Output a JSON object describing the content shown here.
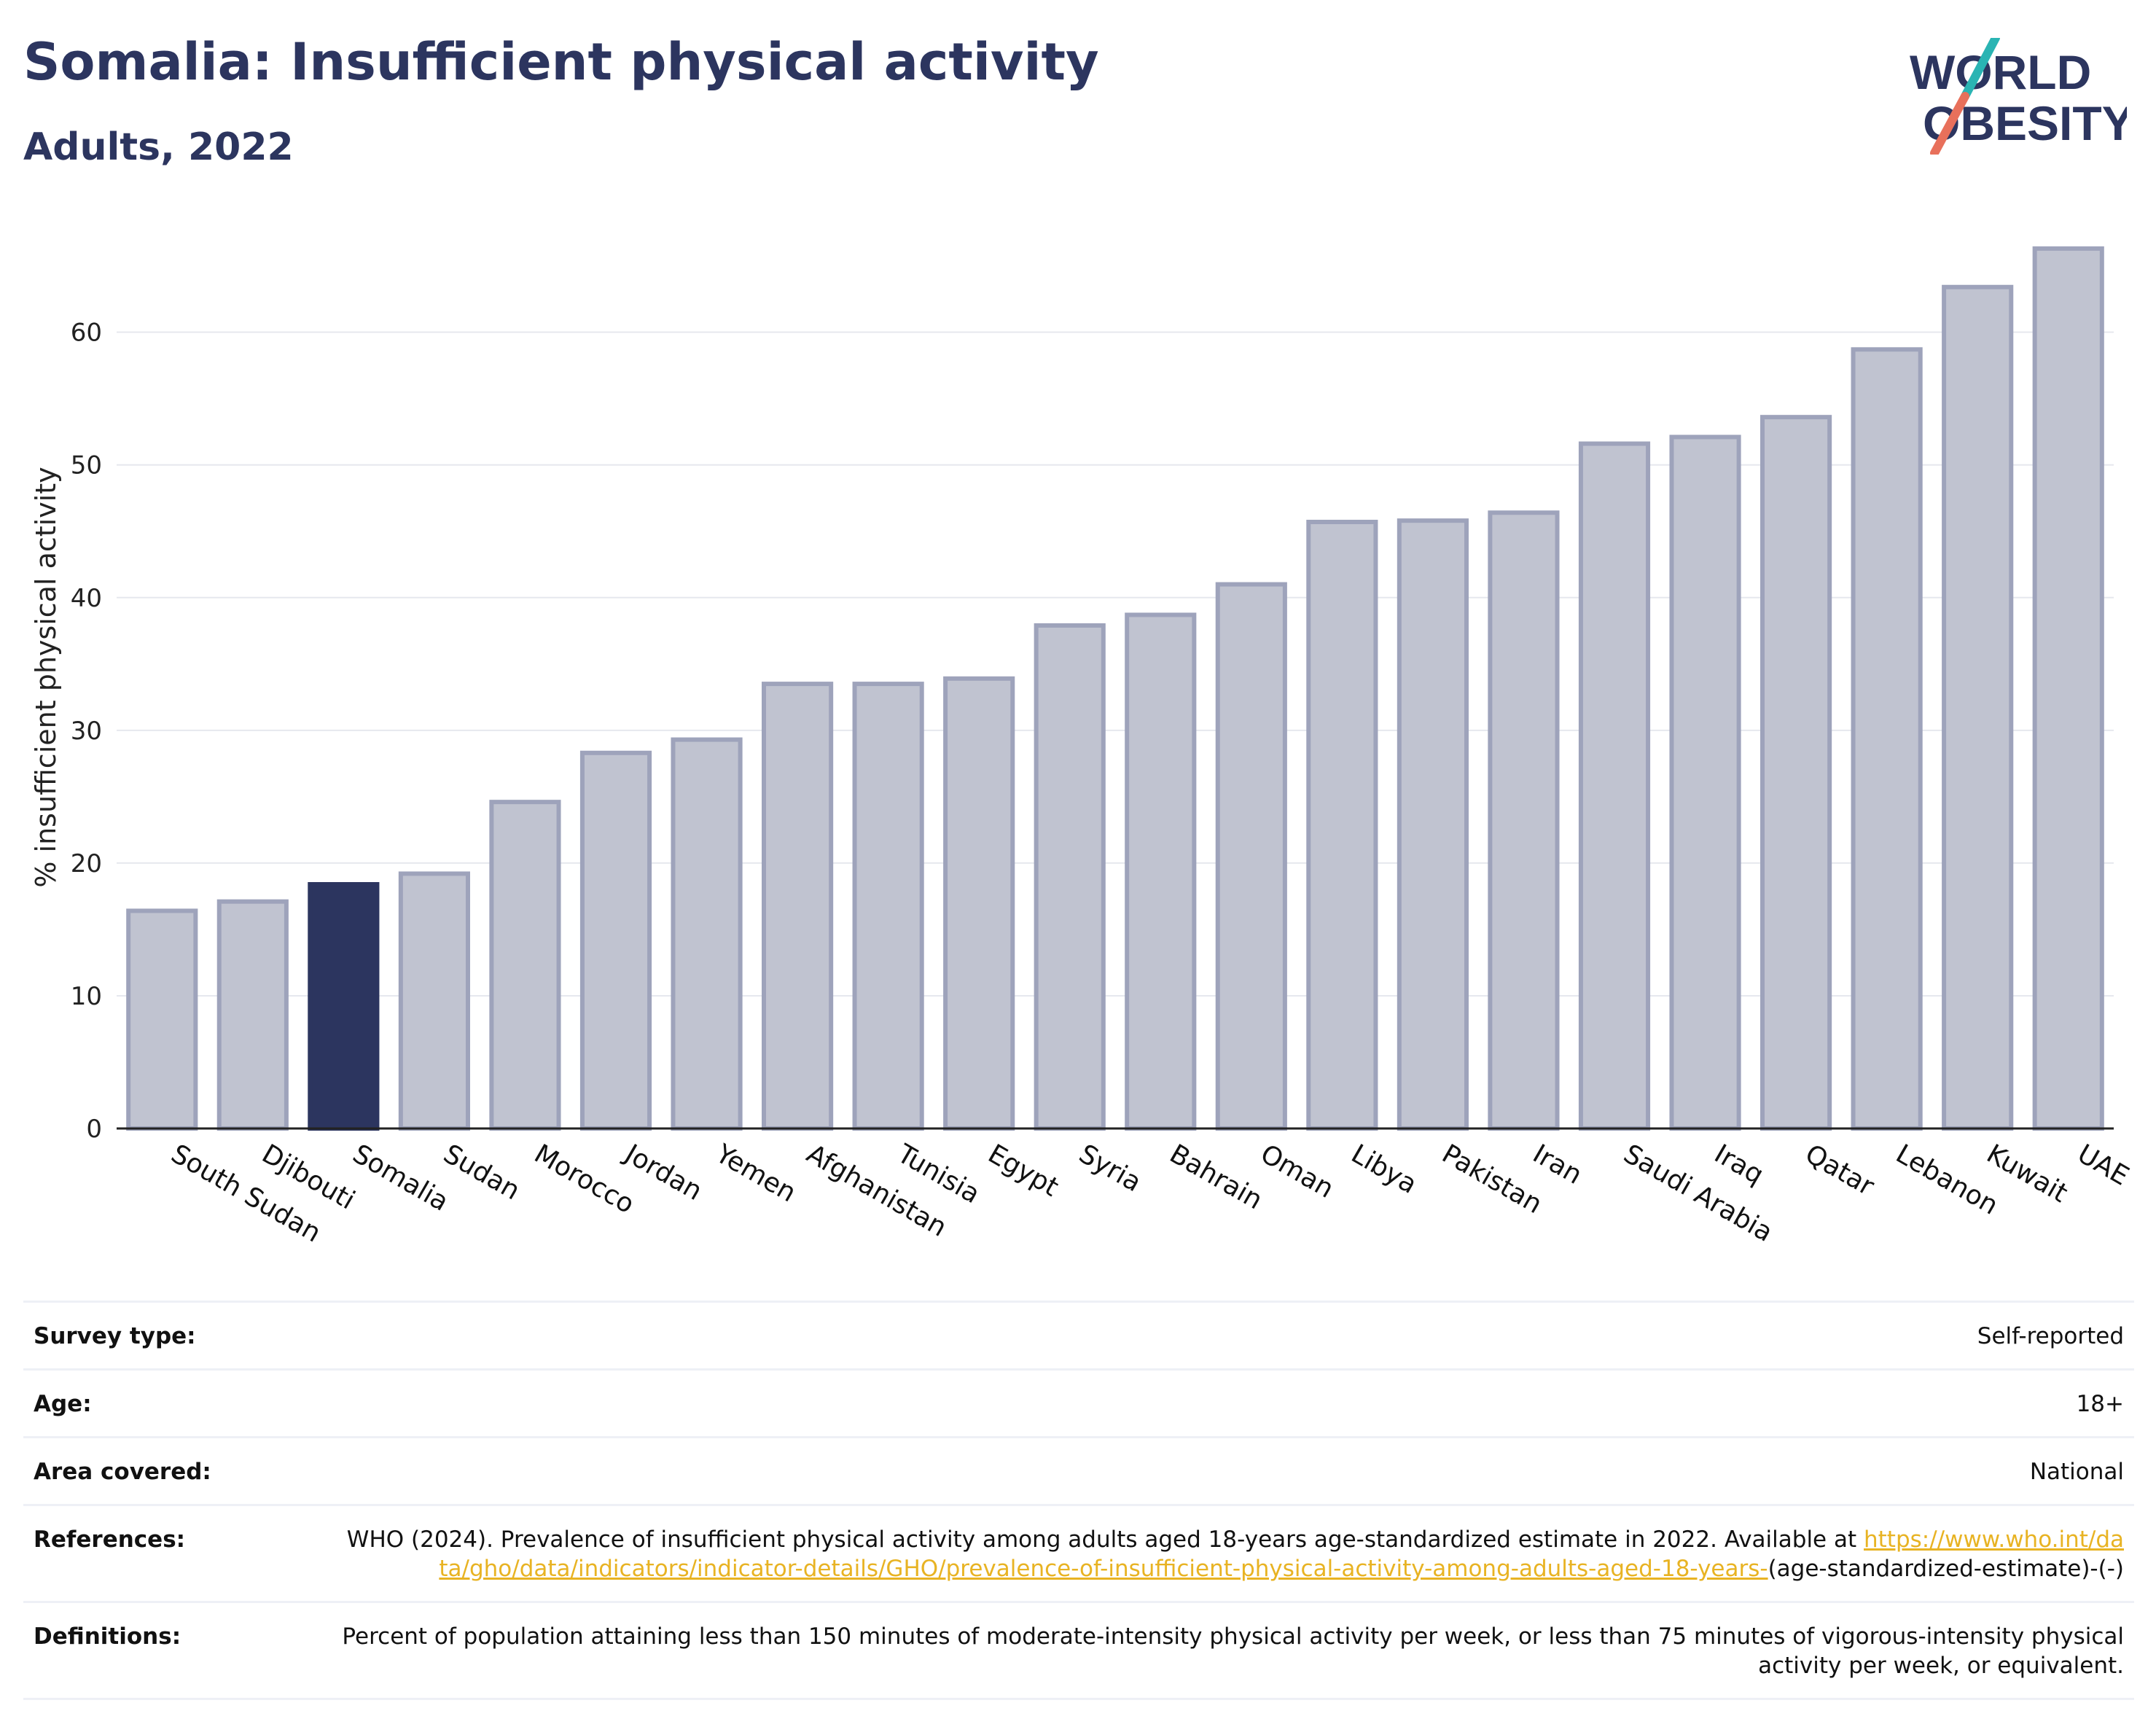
{
  "header": {
    "title": "Somalia: Insufficient physical activity",
    "subtitle": "Adults, 2022"
  },
  "logo": {
    "line1": "WORLD",
    "line2": "OBESITY",
    "colors": {
      "text": "#2c355f",
      "slash_top": "#2ab4b3",
      "slash_bottom": "#e8705b"
    }
  },
  "colors": {
    "bar": "#c0c3d0",
    "bar_border": "#9ea3bb",
    "highlight": "#2c355f",
    "grid": "#e6e8ee",
    "axis": "#222222"
  },
  "chart_data": {
    "type": "bar",
    "ylabel": "% insufficient physical activity",
    "ylim": [
      0,
      68
    ],
    "yticks": [
      0,
      10,
      20,
      30,
      40,
      50,
      60
    ],
    "grid": true,
    "highlight": "Somalia",
    "categories": [
      "South Sudan",
      "Djibouti",
      "Somalia",
      "Sudan",
      "Morocco",
      "Jordan",
      "Yemen",
      "Afghanistan",
      "Tunisia",
      "Egypt",
      "Syria",
      "Bahrain",
      "Oman",
      "Libya",
      "Pakistan",
      "Iran",
      "Saudi Arabia",
      "Iraq",
      "Qatar",
      "Lebanon",
      "Kuwait",
      "UAE"
    ],
    "values": [
      16.4,
      17.1,
      18.4,
      19.2,
      24.6,
      28.3,
      29.3,
      33.5,
      33.5,
      33.9,
      37.9,
      38.7,
      41.0,
      45.7,
      45.8,
      46.4,
      51.6,
      52.1,
      53.6,
      58.7,
      63.4,
      66.3
    ]
  },
  "info": [
    {
      "key": "Survey type:",
      "value": "Self-reported"
    },
    {
      "key": "Age:",
      "value": "18+"
    },
    {
      "key": "Area covered:",
      "value": "National"
    },
    {
      "key": "References:",
      "value": "WHO (2024). Prevalence of insufficient physical activity among adults aged 18-years age-standardized estimate in 2022. Available at",
      "link": "https://www.who.int/data/gho/data/indicators/indicator-details/GHO/prevalence-of-insufficient-physical-activity-among-adults-aged-18-years-",
      "suffix": "(age-standardized-estimate)-(-)"
    },
    {
      "key": "Definitions:",
      "value": "Percent of population attaining less than 150 minutes of moderate-intensity physical activity per week, or less than 75 minutes of vigorous-intensity physical activity per week, or equivalent."
    }
  ]
}
